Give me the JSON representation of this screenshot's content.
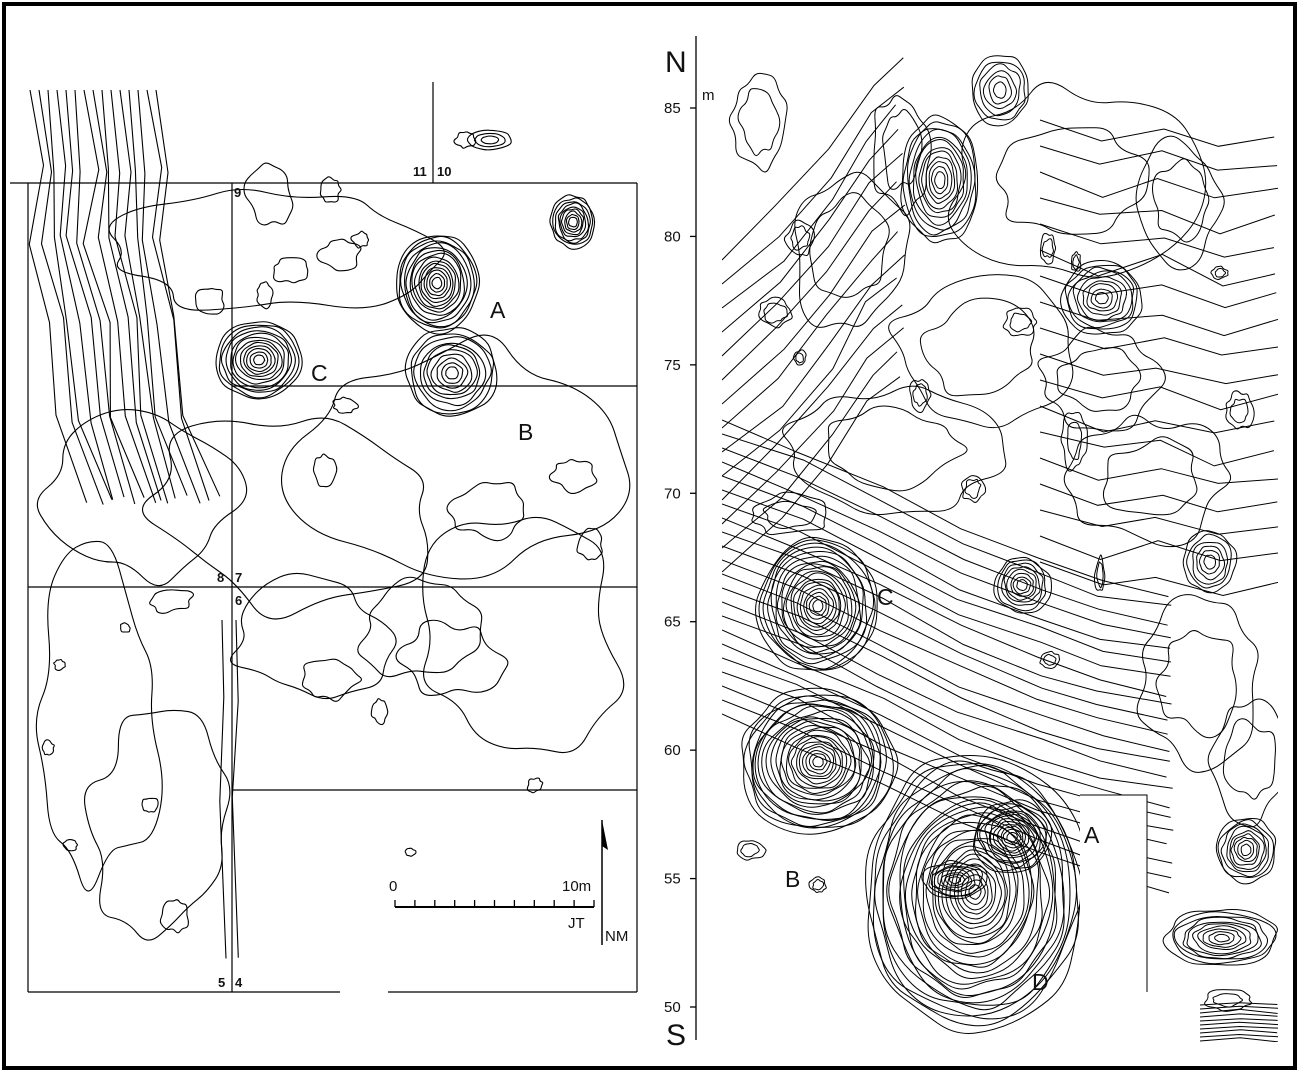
{
  "left_map": {
    "feature_labels": [
      "A",
      "B",
      "C"
    ],
    "grid_point_labels": [
      "9",
      "11",
      "10",
      "8",
      "7",
      "6",
      "5",
      "4"
    ],
    "scale_bar": {
      "start_label": "0",
      "end_label": "10m",
      "length_m": 10
    },
    "north_arrow_label": "NM",
    "initials": "JT"
  },
  "right_map": {
    "feature_labels": [
      "A",
      "B",
      "C",
      "D"
    ],
    "top_direction": "N",
    "bottom_direction": "S",
    "axis_unit": "m",
    "axis_ticks": [
      85,
      80,
      75,
      70,
      65,
      60,
      55,
      50
    ]
  }
}
